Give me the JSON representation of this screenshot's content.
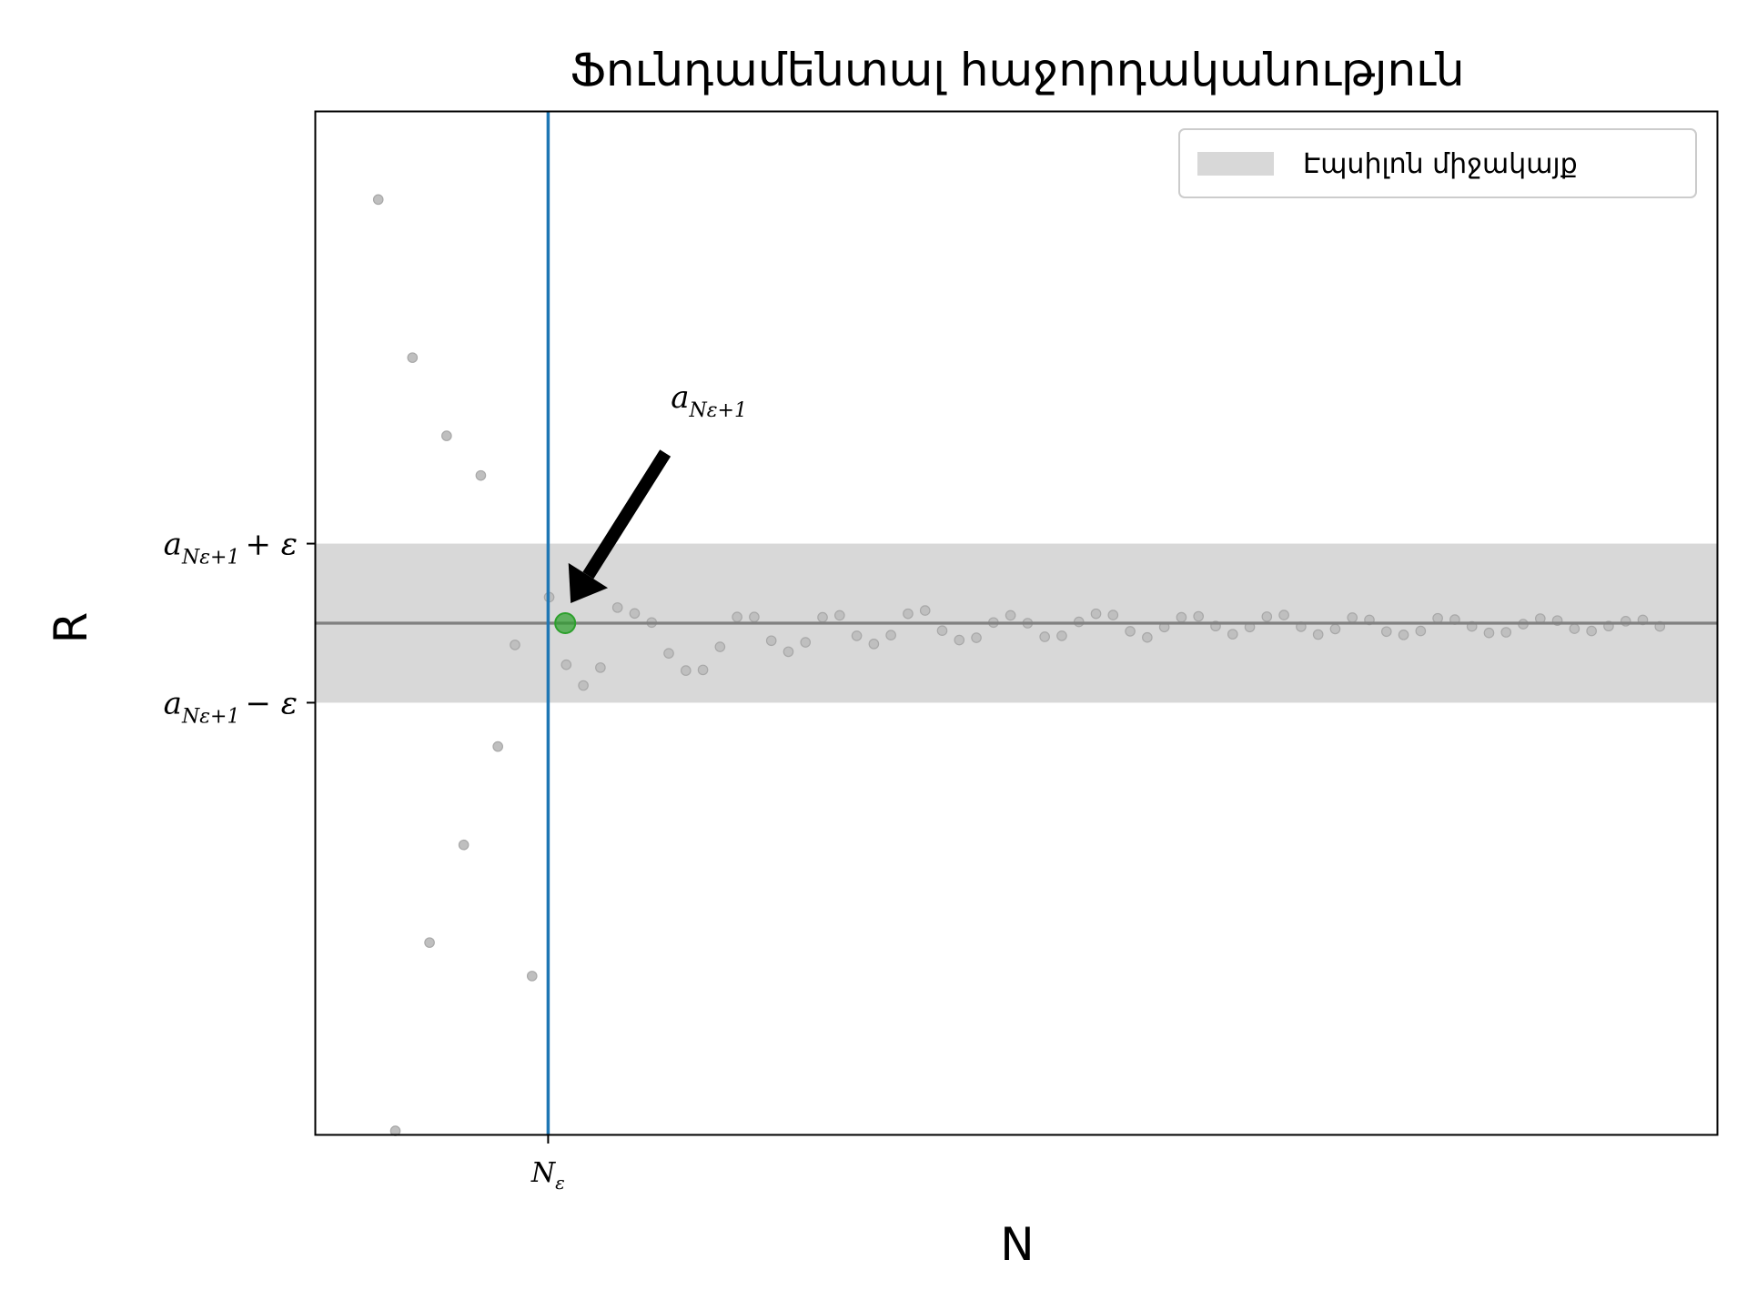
{
  "chart_data": {
    "type": "scatter",
    "title": "Ֆունդամենտալ հաջորդականություն",
    "xlabel": "N",
    "ylabel": "R",
    "grid": false,
    "legend": {
      "placement": "top-right",
      "entries": [
        "Էպսիլոն միջակայք"
      ]
    },
    "xlim": [
      -1.5,
      39.5
    ],
    "ylim": [
      -1.575,
      1.575
    ],
    "x_ticks": [
      {
        "value": 5.3,
        "label_main": "N",
        "label_sub": "ε"
      }
    ],
    "y_ticks": [
      {
        "value": 0.245,
        "label_main": "a",
        "label_sub": "Nε+1",
        "label_suffix": "+ ε"
      },
      {
        "value": -0.245,
        "label_main": "a",
        "label_sub": "Nε+1",
        "label_suffix": "− ε"
      }
    ],
    "limit_value": 0,
    "epsilon": 0.245,
    "N_epsilon": 5.3,
    "highlighted_point": {
      "x": 5.8,
      "y": 0
    },
    "annotation": {
      "main": "a",
      "sub": "Nε+1"
    },
    "series": [
      {
        "x": [
          0.33,
          0.83,
          1.33,
          1.83,
          2.33,
          2.83,
          3.33,
          3.83,
          4.33,
          4.83,
          5.33,
          5.83,
          6.33,
          6.83,
          7.33,
          7.83,
          8.33,
          8.83,
          9.33,
          9.83,
          10.33,
          10.83,
          11.33,
          11.83,
          12.33,
          12.83,
          13.33,
          13.83,
          14.33,
          14.83,
          15.33,
          15.83,
          16.33,
          16.83,
          17.33,
          17.83,
          18.33,
          18.83,
          19.33,
          19.83,
          20.33,
          20.83,
          21.33,
          21.83,
          22.33,
          22.83,
          23.33,
          23.83,
          24.33,
          24.83,
          25.33,
          25.83,
          26.33,
          26.83,
          27.33,
          27.83,
          28.33,
          28.83,
          29.33,
          29.83,
          30.33,
          30.83,
          31.33,
          31.83,
          32.33,
          32.83,
          33.33,
          33.83,
          34.33,
          34.83,
          35.33,
          35.83,
          36.33,
          36.83,
          37.33,
          37.83
        ],
        "y": [
          1.305,
          -1.564,
          0.818,
          -0.984,
          0.577,
          -0.683,
          0.455,
          -0.38,
          -0.067,
          -1.087,
          0.08,
          -0.128,
          -0.192,
          -0.137,
          0.048,
          0.03,
          0.002,
          -0.093,
          -0.146,
          -0.144,
          -0.073,
          0.019,
          0.019,
          -0.054,
          -0.088,
          -0.059,
          0.018,
          0.024,
          -0.039,
          -0.064,
          -0.037,
          0.029,
          0.039,
          -0.023,
          -0.052,
          -0.045,
          0.002,
          0.024,
          0.0,
          -0.042,
          -0.039,
          0.004,
          0.029,
          0.025,
          -0.025,
          -0.044,
          -0.012,
          0.018,
          0.021,
          -0.009,
          -0.034,
          -0.012,
          0.02,
          0.025,
          -0.011,
          -0.035,
          -0.018,
          0.017,
          0.01,
          -0.026,
          -0.036,
          -0.024,
          0.015,
          0.011,
          -0.01,
          -0.03,
          -0.028,
          -0.003,
          0.014,
          0.008,
          -0.017,
          -0.024,
          -0.009,
          0.006,
          0.01,
          -0.01
        ]
      }
    ],
    "colors": {
      "band": "#d8d8d8",
      "points": "#bfbfbf",
      "limit_line": "#808080",
      "n_line": "#1f77b4",
      "highlight": "#2ca02c",
      "arrow": "#000000"
    }
  }
}
